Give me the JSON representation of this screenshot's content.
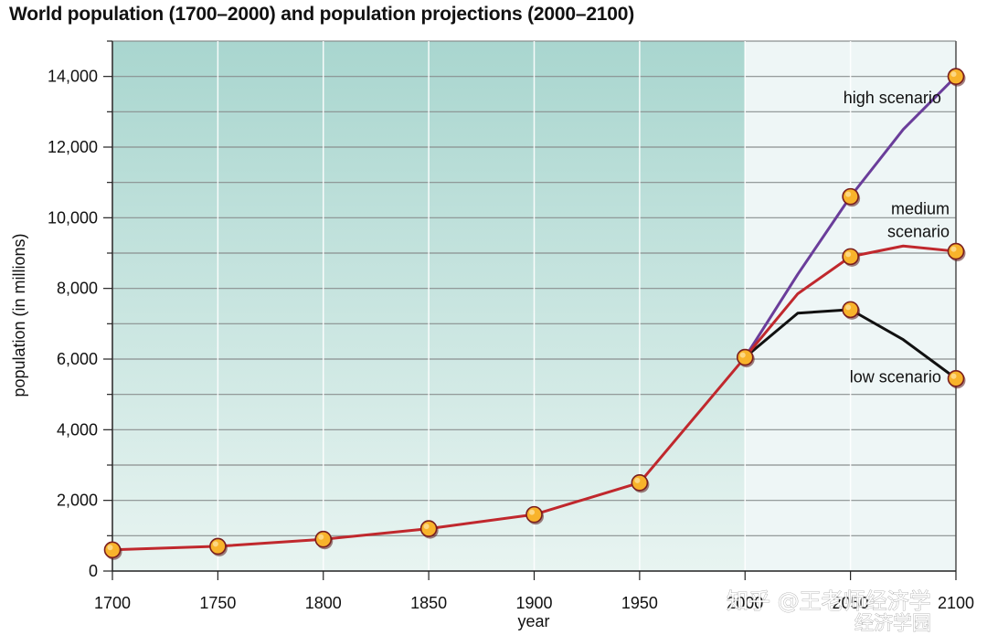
{
  "chart_data": {
    "type": "line",
    "title": "World population (1700–2000) and population projections (2000–2100)",
    "xlabel": "year",
    "ylabel": "population (in millions)",
    "xlim": [
      1700,
      2100
    ],
    "ylim": [
      0,
      15000
    ],
    "x_ticks": [
      1700,
      1750,
      1800,
      1850,
      1900,
      1950,
      2000,
      2050,
      2100
    ],
    "x_tick_labels": [
      "1700",
      "1750",
      "1800",
      "1850",
      "1900",
      "1950",
      "2000",
      "2050",
      "2100"
    ],
    "y_ticks": [
      0,
      2000,
      4000,
      6000,
      8000,
      10000,
      12000,
      14000
    ],
    "y_tick_labels": [
      "0",
      "2,000",
      "4,000",
      "6,000",
      "8,000",
      "10,000",
      "12,000",
      "14,000"
    ],
    "grid": "horizontal lines every 1,000",
    "historical_shading_end": 2000,
    "series": [
      {
        "name": "",
        "color": "#c0282d",
        "x": [
          1700,
          1750,
          1800,
          1850,
          1900,
          1950,
          2000
        ],
        "y": [
          600,
          700,
          900,
          1200,
          1600,
          2500,
          6050
        ],
        "markers": [
          1700,
          1750,
          1800,
          1850,
          1900,
          1950,
          2000
        ]
      },
      {
        "name": "high scenario",
        "color": "#6a3d9a",
        "x": [
          2000,
          2025,
          2050,
          2075,
          2100
        ],
        "y": [
          6050,
          8400,
          10600,
          12500,
          14000
        ],
        "markers": [
          2050,
          2100
        ]
      },
      {
        "name": "medium scenario",
        "color": "#c0282d",
        "x": [
          2000,
          2025,
          2050,
          2075,
          2100
        ],
        "y": [
          6050,
          7850,
          8900,
          9200,
          9050
        ],
        "markers": [
          2050,
          2100
        ]
      },
      {
        "name": "low scenario",
        "color": "#111111",
        "x": [
          2000,
          2025,
          2050,
          2075,
          2100
        ],
        "y": [
          6050,
          7300,
          7400,
          6550,
          5450
        ],
        "markers": [
          2050,
          2100
        ]
      }
    ],
    "annotations": [
      {
        "lines": [
          "high scenario"
        ],
        "anchor": "end",
        "x": 2093,
        "y": 13400
      },
      {
        "lines": [
          "medium",
          "scenario"
        ],
        "anchor": "end",
        "x": 2097,
        "y": 10250
      },
      {
        "lines": [
          "low scenario"
        ],
        "anchor": "end",
        "x": 2093,
        "y": 5500
      }
    ],
    "marker_fill": "#f8b32b",
    "marker_stroke": "#7a1e1e"
  },
  "watermark": {
    "line1": "知乎 @王老师经济学",
    "line2": "经济学园"
  }
}
